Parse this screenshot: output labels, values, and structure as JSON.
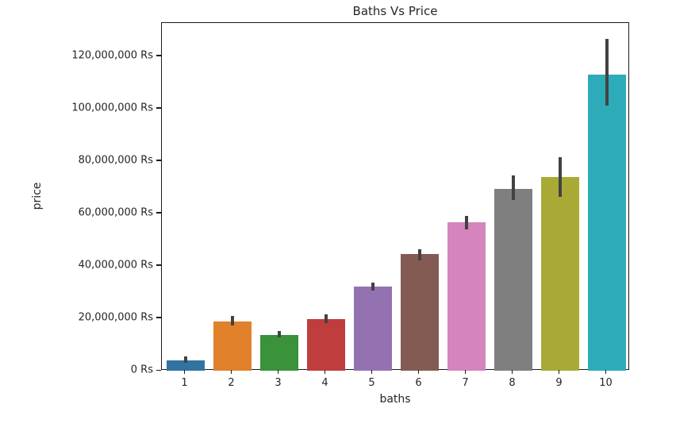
{
  "chart_data": {
    "type": "bar",
    "title": "Baths Vs Price",
    "xlabel": "baths",
    "ylabel": "price",
    "categories": [
      "1",
      "2",
      "3",
      "4",
      "5",
      "6",
      "7",
      "8",
      "9",
      "10"
    ],
    "values": [
      4000000,
      18800000,
      13700000,
      19700000,
      32100000,
      44500000,
      56700000,
      69400000,
      73900000,
      113000000
    ],
    "error_low": [
      2900000,
      17300000,
      12700000,
      18200000,
      30600000,
      42100000,
      53900000,
      65200000,
      66400000,
      101200000
    ],
    "error_high": [
      5500000,
      20900000,
      15200000,
      21500000,
      33600000,
      46400000,
      59100000,
      74500000,
      81500000,
      126700000
    ],
    "bar_colors": [
      "#3274a1",
      "#e1812c",
      "#3a923a",
      "#c03d3e",
      "#9472b2",
      "#845b53",
      "#d584bd",
      "#7f7f7f",
      "#a9aa35",
      "#2eabb8"
    ],
    "error_bar_color": "#424242",
    "y_ticks": [
      0,
      20000000,
      40000000,
      60000000,
      80000000,
      100000000,
      120000000
    ],
    "y_tick_labels": [
      "0 Rs",
      "20,000,000 Rs",
      "40,000,000 Rs",
      "60,000,000 Rs",
      "80,000,000 Rs",
      "100,000,000 Rs",
      "120,000,000 Rs"
    ],
    "ylim": [
      0,
      132700000
    ],
    "grid": false,
    "legend": null,
    "background_color": "#ffffff"
  }
}
